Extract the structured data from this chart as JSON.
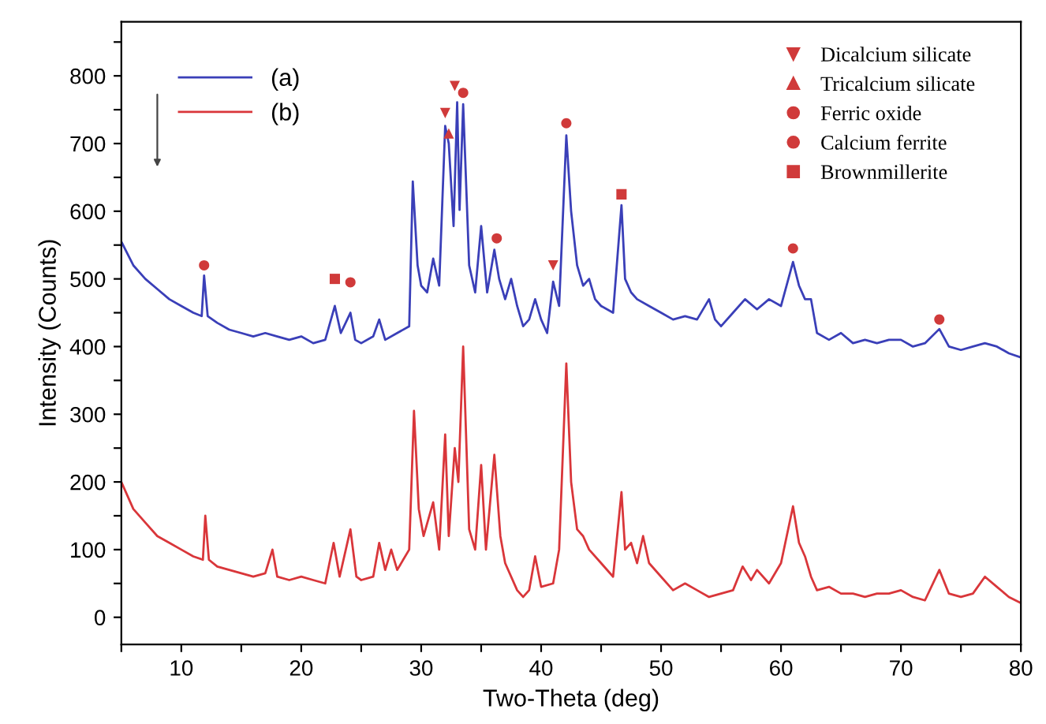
{
  "chart_data": {
    "type": "line",
    "xlabel": "Two-Theta (deg)",
    "ylabel": "Intensity (Counts)",
    "xlim": [
      5,
      80
    ],
    "ylim": [
      -40,
      880
    ],
    "xticks": [
      {
        "value": 5,
        "label": null
      },
      10,
      {
        "value": 15,
        "label": null
      },
      20,
      {
        "value": 25,
        "label": null
      },
      30,
      {
        "value": 35,
        "label": null
      },
      40,
      {
        "value": 45,
        "label": null
      },
      50,
      {
        "value": 55,
        "label": null
      },
      60,
      {
        "value": 65,
        "label": null
      },
      70,
      {
        "value": 75,
        "label": null
      },
      80
    ],
    "yticks": [
      0,
      {
        "value": 50,
        "label": null
      },
      100,
      {
        "value": 150,
        "label": null
      },
      200,
      {
        "value": 250,
        "label": null
      },
      300,
      {
        "value": 350,
        "label": null
      },
      400,
      {
        "value": 450,
        "label": null
      },
      500,
      {
        "value": 550,
        "label": null
      },
      600,
      {
        "value": 650,
        "label": null
      },
      700,
      {
        "value": 750,
        "label": null
      },
      800,
      {
        "value": 850,
        "label": null
      }
    ],
    "grid": false,
    "legend": "top left",
    "series": [
      {
        "name": "(a)",
        "color": "#3a3fb8",
        "x": [
          5,
          6,
          7,
          8,
          9,
          10,
          11,
          11.7,
          11.9,
          12.2,
          13,
          14,
          15,
          16,
          17,
          18,
          19,
          20,
          21,
          22,
          22.8,
          23.3,
          24.1,
          24.5,
          25,
          26,
          26.5,
          27,
          28,
          29,
          29.3,
          29.7,
          30,
          30.5,
          31,
          31.5,
          32,
          32.3,
          32.7,
          33.0,
          33.2,
          33.5,
          34,
          34.5,
          35,
          35.5,
          36.1,
          36.5,
          37,
          37.5,
          38,
          38.5,
          39,
          39.5,
          40,
          40.5,
          41,
          41.5,
          42.1,
          42.5,
          43,
          43.5,
          44,
          44.5,
          45,
          46,
          46.7,
          47,
          47.5,
          48,
          49,
          50,
          51,
          52,
          53,
          54,
          54.5,
          55,
          56,
          57,
          58,
          59,
          60,
          61.0,
          61.5,
          62,
          62.5,
          63,
          64,
          65,
          66,
          67,
          68,
          69,
          70,
          71,
          72,
          73.2,
          74,
          75,
          76,
          77,
          78,
          79,
          80
        ],
        "values": [
          555,
          520,
          500,
          485,
          470,
          460,
          450,
          445,
          505,
          445,
          435,
          425,
          420,
          415,
          420,
          415,
          410,
          415,
          405,
          410,
          460,
          420,
          450,
          410,
          405,
          415,
          440,
          410,
          420,
          430,
          644,
          520,
          490,
          480,
          530,
          490,
          726,
          700,
          578,
          761,
          602,
          758,
          520,
          480,
          578,
          480,
          543,
          500,
          470,
          500,
          460,
          430,
          440,
          470,
          440,
          420,
          496,
          460,
          712,
          600,
          520,
          490,
          500,
          470,
          460,
          450,
          609,
          500,
          480,
          470,
          460,
          450,
          440,
          445,
          440,
          470,
          440,
          430,
          450,
          470,
          455,
          470,
          460,
          525,
          490,
          470,
          470,
          420,
          410,
          420,
          405,
          410,
          405,
          410,
          410,
          400,
          405,
          426,
          400,
          395,
          400,
          405,
          400,
          390,
          384
        ]
      },
      {
        "name": "(b)",
        "color": "#d9363a",
        "x": [
          5,
          6,
          7,
          8,
          9,
          10,
          11,
          11.8,
          12.0,
          12.3,
          13,
          14,
          15,
          16,
          17,
          17.6,
          18,
          19,
          20,
          21,
          22,
          22.7,
          23.2,
          24.1,
          24.6,
          25,
          26,
          26.5,
          27,
          27.5,
          28,
          29,
          29.4,
          29.8,
          30.2,
          31,
          31.5,
          32.0,
          32.3,
          32.8,
          33.1,
          33.5,
          34,
          34.5,
          35.0,
          35.4,
          36.1,
          36.6,
          37,
          38,
          38.5,
          39,
          39.5,
          40,
          41,
          41.5,
          42.1,
          42.5,
          43,
          43.5,
          44,
          45,
          46,
          46.7,
          47,
          47.5,
          48,
          48.5,
          49,
          50,
          51,
          52,
          53,
          54,
          55,
          56,
          56.8,
          57.5,
          58,
          59,
          60,
          61.0,
          61.5,
          62,
          62.5,
          63,
          64,
          65,
          66,
          67,
          68,
          69,
          70,
          71,
          72,
          73.2,
          74,
          75,
          76,
          77,
          78,
          79,
          80
        ],
        "values": [
          200,
          160,
          140,
          120,
          110,
          100,
          90,
          85,
          150,
          85,
          75,
          70,
          65,
          60,
          65,
          100,
          60,
          55,
          60,
          55,
          50,
          110,
          60,
          130,
          60,
          55,
          60,
          110,
          70,
          100,
          70,
          100,
          305,
          160,
          120,
          170,
          100,
          270,
          120,
          250,
          200,
          400,
          130,
          100,
          225,
          100,
          240,
          120,
          80,
          40,
          30,
          40,
          90,
          45,
          50,
          100,
          375,
          200,
          130,
          120,
          100,
          80,
          60,
          185,
          100,
          110,
          80,
          120,
          80,
          60,
          40,
          50,
          40,
          30,
          35,
          40,
          75,
          55,
          70,
          50,
          80,
          164,
          110,
          90,
          60,
          40,
          45,
          35,
          35,
          30,
          35,
          35,
          40,
          30,
          25,
          70,
          35,
          30,
          35,
          60,
          45,
          30,
          21
        ]
      },
      {
        "name": "Dicalcium silicate",
        "type": "scatter",
        "marker": "triangle_down",
        "color": "#d03a3a",
        "x": [
          32.0,
          32.8,
          41.0
        ],
        "values": [
          745,
          785,
          520
        ]
      },
      {
        "name": "Tricalcium silicate",
        "type": "scatter",
        "marker": "triangle",
        "color": "#d03a3a",
        "x": [
          32.3
        ],
        "values": [
          715
        ]
      },
      {
        "name": "Ferric oxide",
        "type": "scatter",
        "marker": "circle",
        "color": "#d03a3a",
        "x": [
          33.5,
          42.1,
          61.0
        ],
        "values": [
          775,
          730,
          545
        ]
      },
      {
        "name": "Calcium ferrite",
        "type": "scatter",
        "marker": "circle",
        "color": "#d03a3a",
        "x": [
          11.9,
          24.1,
          36.3,
          73.2
        ],
        "values": [
          520,
          495,
          560,
          440
        ]
      },
      {
        "name": "Brownmillerite",
        "type": "scatter",
        "marker": "square",
        "color": "#d03a3a",
        "x": [
          22.8,
          46.7
        ],
        "values": [
          500,
          625
        ]
      }
    ]
  }
}
